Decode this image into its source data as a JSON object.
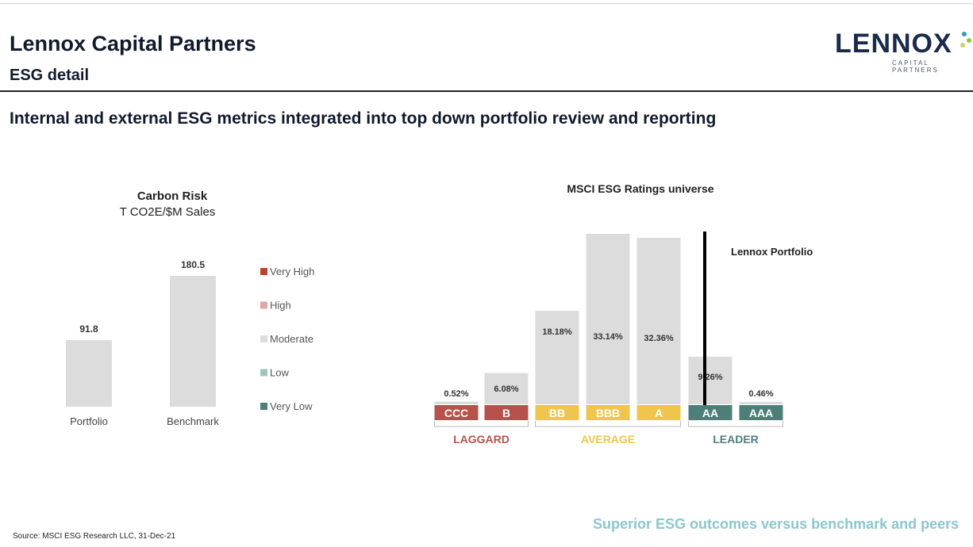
{
  "header": {
    "title": "Lennox Capital Partners",
    "subtitle": "ESG detail",
    "headline": "Internal and external ESG metrics integrated into top down portfolio review and reporting"
  },
  "logo": {
    "word": "LENNOX",
    "sub": "CAPITAL PARTNERS",
    "dot_colors": [
      "#2f9fb0",
      "#8dc63f",
      "#c9d36a"
    ]
  },
  "footer": {
    "source": "Source: MSCI ESG Research LLC, 31-Dec-21",
    "tagline": "Superior ESG outcomes versus benchmark and peers"
  },
  "chart_data": [
    {
      "type": "bar",
      "title": "Carbon Risk",
      "subtitle": "T CO2E/$M Sales",
      "categories": [
        "Portfolio",
        "Benchmark"
      ],
      "values": [
        91.8,
        180.5
      ],
      "value_labels": [
        "91.8",
        "180.5"
      ],
      "bar_color": "#dcdcdc",
      "ylim": [
        0,
        185
      ],
      "legend": {
        "placement": "right",
        "items": [
          {
            "label": "Very High",
            "color": "#c0412b"
          },
          {
            "label": "High",
            "color": "#e2a5a5"
          },
          {
            "label": "Moderate",
            "color": "#dcdcdc"
          },
          {
            "label": "Low",
            "color": "#9fc4c0"
          },
          {
            "label": "Very Low",
            "color": "#4d7f78"
          }
        ]
      }
    },
    {
      "type": "bar",
      "title": "MSCI ESG Ratings universe",
      "categories": [
        "CCC",
        "B",
        "BB",
        "BBB",
        "A",
        "AA",
        "AAA"
      ],
      "values": [
        0.52,
        6.08,
        18.18,
        33.14,
        32.36,
        9.26,
        0.46
      ],
      "value_labels": [
        "0.52%",
        "6.08%",
        "18.18%",
        "33.14%",
        "32.36%",
        "9.26%",
        "0.46%"
      ],
      "category_colors": [
        "#b7514b",
        "#b7514b",
        "#efc54d",
        "#efc54d",
        "#efc54d",
        "#4d7f78",
        "#4d7f78"
      ],
      "bar_color": "#dcdcdc",
      "groups": [
        {
          "label": "LAGGARD",
          "color": "#b7514b",
          "from": 0,
          "to": 1
        },
        {
          "label": "AVERAGE",
          "color": "#efc54d",
          "from": 2,
          "to": 4
        },
        {
          "label": "LEADER",
          "color": "#4d7f78",
          "from": 5,
          "to": 6
        }
      ],
      "marker": {
        "label": "Lennox Portfolio",
        "category": "AA"
      },
      "ylim": [
        0,
        34
      ]
    }
  ]
}
